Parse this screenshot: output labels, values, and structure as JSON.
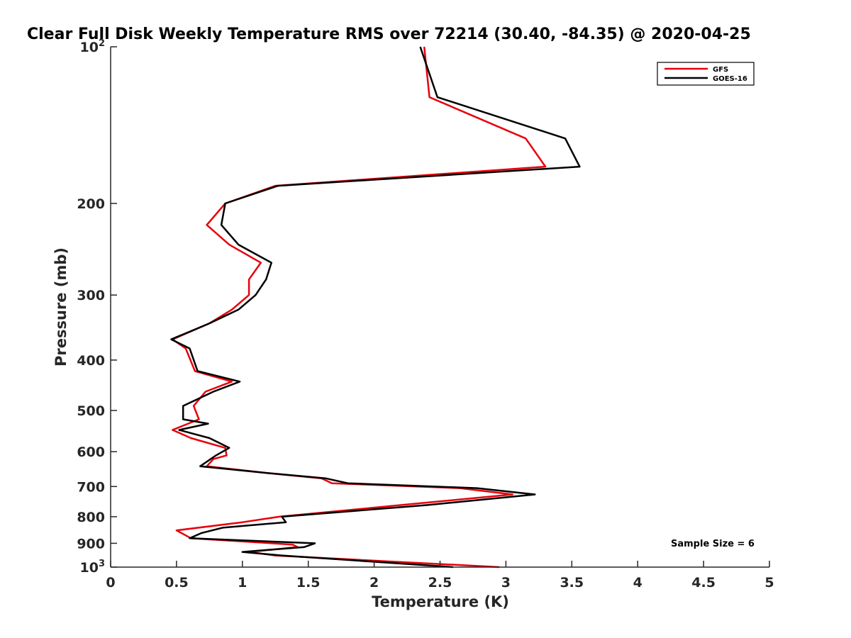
{
  "chart_data": {
    "type": "line",
    "title": "Clear Full Disk Weekly Temperature RMS over 72214 (30.40, -84.35) @ 2020-04-25",
    "xlabel": "Temperature (K)",
    "ylabel": "Pressure (mb)",
    "xlim": [
      0,
      5
    ],
    "ylim": [
      100,
      1000
    ],
    "y_scale": "log",
    "y_reversed": true,
    "grid": false,
    "legend_position": "top-right",
    "x_ticks": [
      0,
      0.5,
      1,
      1.5,
      2,
      2.5,
      3,
      3.5,
      4,
      4.5,
      5
    ],
    "x_tick_labels": [
      "0",
      "0.5",
      "1",
      "1.5",
      "2",
      "2.5",
      "3",
      "3.5",
      "4",
      "4.5",
      "5"
    ],
    "y_ticks": [
      100,
      200,
      300,
      400,
      500,
      600,
      700,
      800,
      900,
      1000
    ],
    "y_tick_labels": [
      {
        "base": "10",
        "exp": "2"
      },
      {
        "base": "200",
        "exp": ""
      },
      {
        "base": "300",
        "exp": ""
      },
      {
        "base": "400",
        "exp": ""
      },
      {
        "base": "500",
        "exp": ""
      },
      {
        "base": "600",
        "exp": ""
      },
      {
        "base": "700",
        "exp": ""
      },
      {
        "base": "800",
        "exp": ""
      },
      {
        "base": "900",
        "exp": ""
      },
      {
        "base": "10",
        "exp": "3"
      }
    ],
    "annotation": "Sample Size = 6",
    "series": [
      {
        "name": "GFS",
        "color": "#e8000b",
        "points": [
          [
            2.38,
            100
          ],
          [
            2.42,
            125
          ],
          [
            3.15,
            150
          ],
          [
            3.3,
            170
          ],
          [
            1.25,
            185
          ],
          [
            0.87,
            200
          ],
          [
            0.73,
            220
          ],
          [
            0.9,
            240
          ],
          [
            1.14,
            260
          ],
          [
            1.05,
            280
          ],
          [
            1.05,
            300
          ],
          [
            0.92,
            320
          ],
          [
            0.75,
            340
          ],
          [
            0.47,
            365
          ],
          [
            0.57,
            380
          ],
          [
            0.64,
            420
          ],
          [
            0.92,
            440
          ],
          [
            0.72,
            460
          ],
          [
            0.63,
            490
          ],
          [
            0.67,
            520
          ],
          [
            0.47,
            545
          ],
          [
            0.61,
            565
          ],
          [
            0.87,
            590
          ],
          [
            0.88,
            610
          ],
          [
            0.78,
            620
          ],
          [
            0.73,
            640
          ],
          [
            1.2,
            660
          ],
          [
            1.6,
            675
          ],
          [
            1.68,
            690
          ],
          [
            2.65,
            705
          ],
          [
            3.05,
            725
          ],
          [
            2.2,
            760
          ],
          [
            1.28,
            800
          ],
          [
            1.0,
            820
          ],
          [
            0.5,
            850
          ],
          [
            0.61,
            880
          ],
          [
            1.38,
            905
          ],
          [
            1.42,
            915
          ],
          [
            1.05,
            935
          ],
          [
            1.25,
            950
          ],
          [
            2.95,
            1000
          ]
        ]
      },
      {
        "name": "GOES-16",
        "color": "#000000",
        "points": [
          [
            2.35,
            100
          ],
          [
            2.48,
            125
          ],
          [
            3.45,
            150
          ],
          [
            3.56,
            170
          ],
          [
            1.27,
            185
          ],
          [
            0.87,
            200
          ],
          [
            0.84,
            220
          ],
          [
            0.97,
            240
          ],
          [
            1.22,
            260
          ],
          [
            1.18,
            280
          ],
          [
            1.1,
            300
          ],
          [
            0.97,
            320
          ],
          [
            0.75,
            340
          ],
          [
            0.46,
            365
          ],
          [
            0.6,
            380
          ],
          [
            0.66,
            420
          ],
          [
            0.98,
            440
          ],
          [
            0.78,
            460
          ],
          [
            0.55,
            490
          ],
          [
            0.55,
            520
          ],
          [
            0.74,
            530
          ],
          [
            0.52,
            545
          ],
          [
            0.75,
            565
          ],
          [
            0.9,
            590
          ],
          [
            0.8,
            610
          ],
          [
            0.68,
            640
          ],
          [
            1.2,
            660
          ],
          [
            1.63,
            675
          ],
          [
            1.8,
            690
          ],
          [
            2.78,
            705
          ],
          [
            3.22,
            725
          ],
          [
            2.4,
            760
          ],
          [
            1.3,
            800
          ],
          [
            1.33,
            820
          ],
          [
            0.85,
            840
          ],
          [
            0.69,
            860
          ],
          [
            0.6,
            880
          ],
          [
            1.55,
            900
          ],
          [
            1.47,
            915
          ],
          [
            1.0,
            935
          ],
          [
            1.3,
            950
          ],
          [
            2.6,
            1000
          ]
        ]
      }
    ]
  }
}
